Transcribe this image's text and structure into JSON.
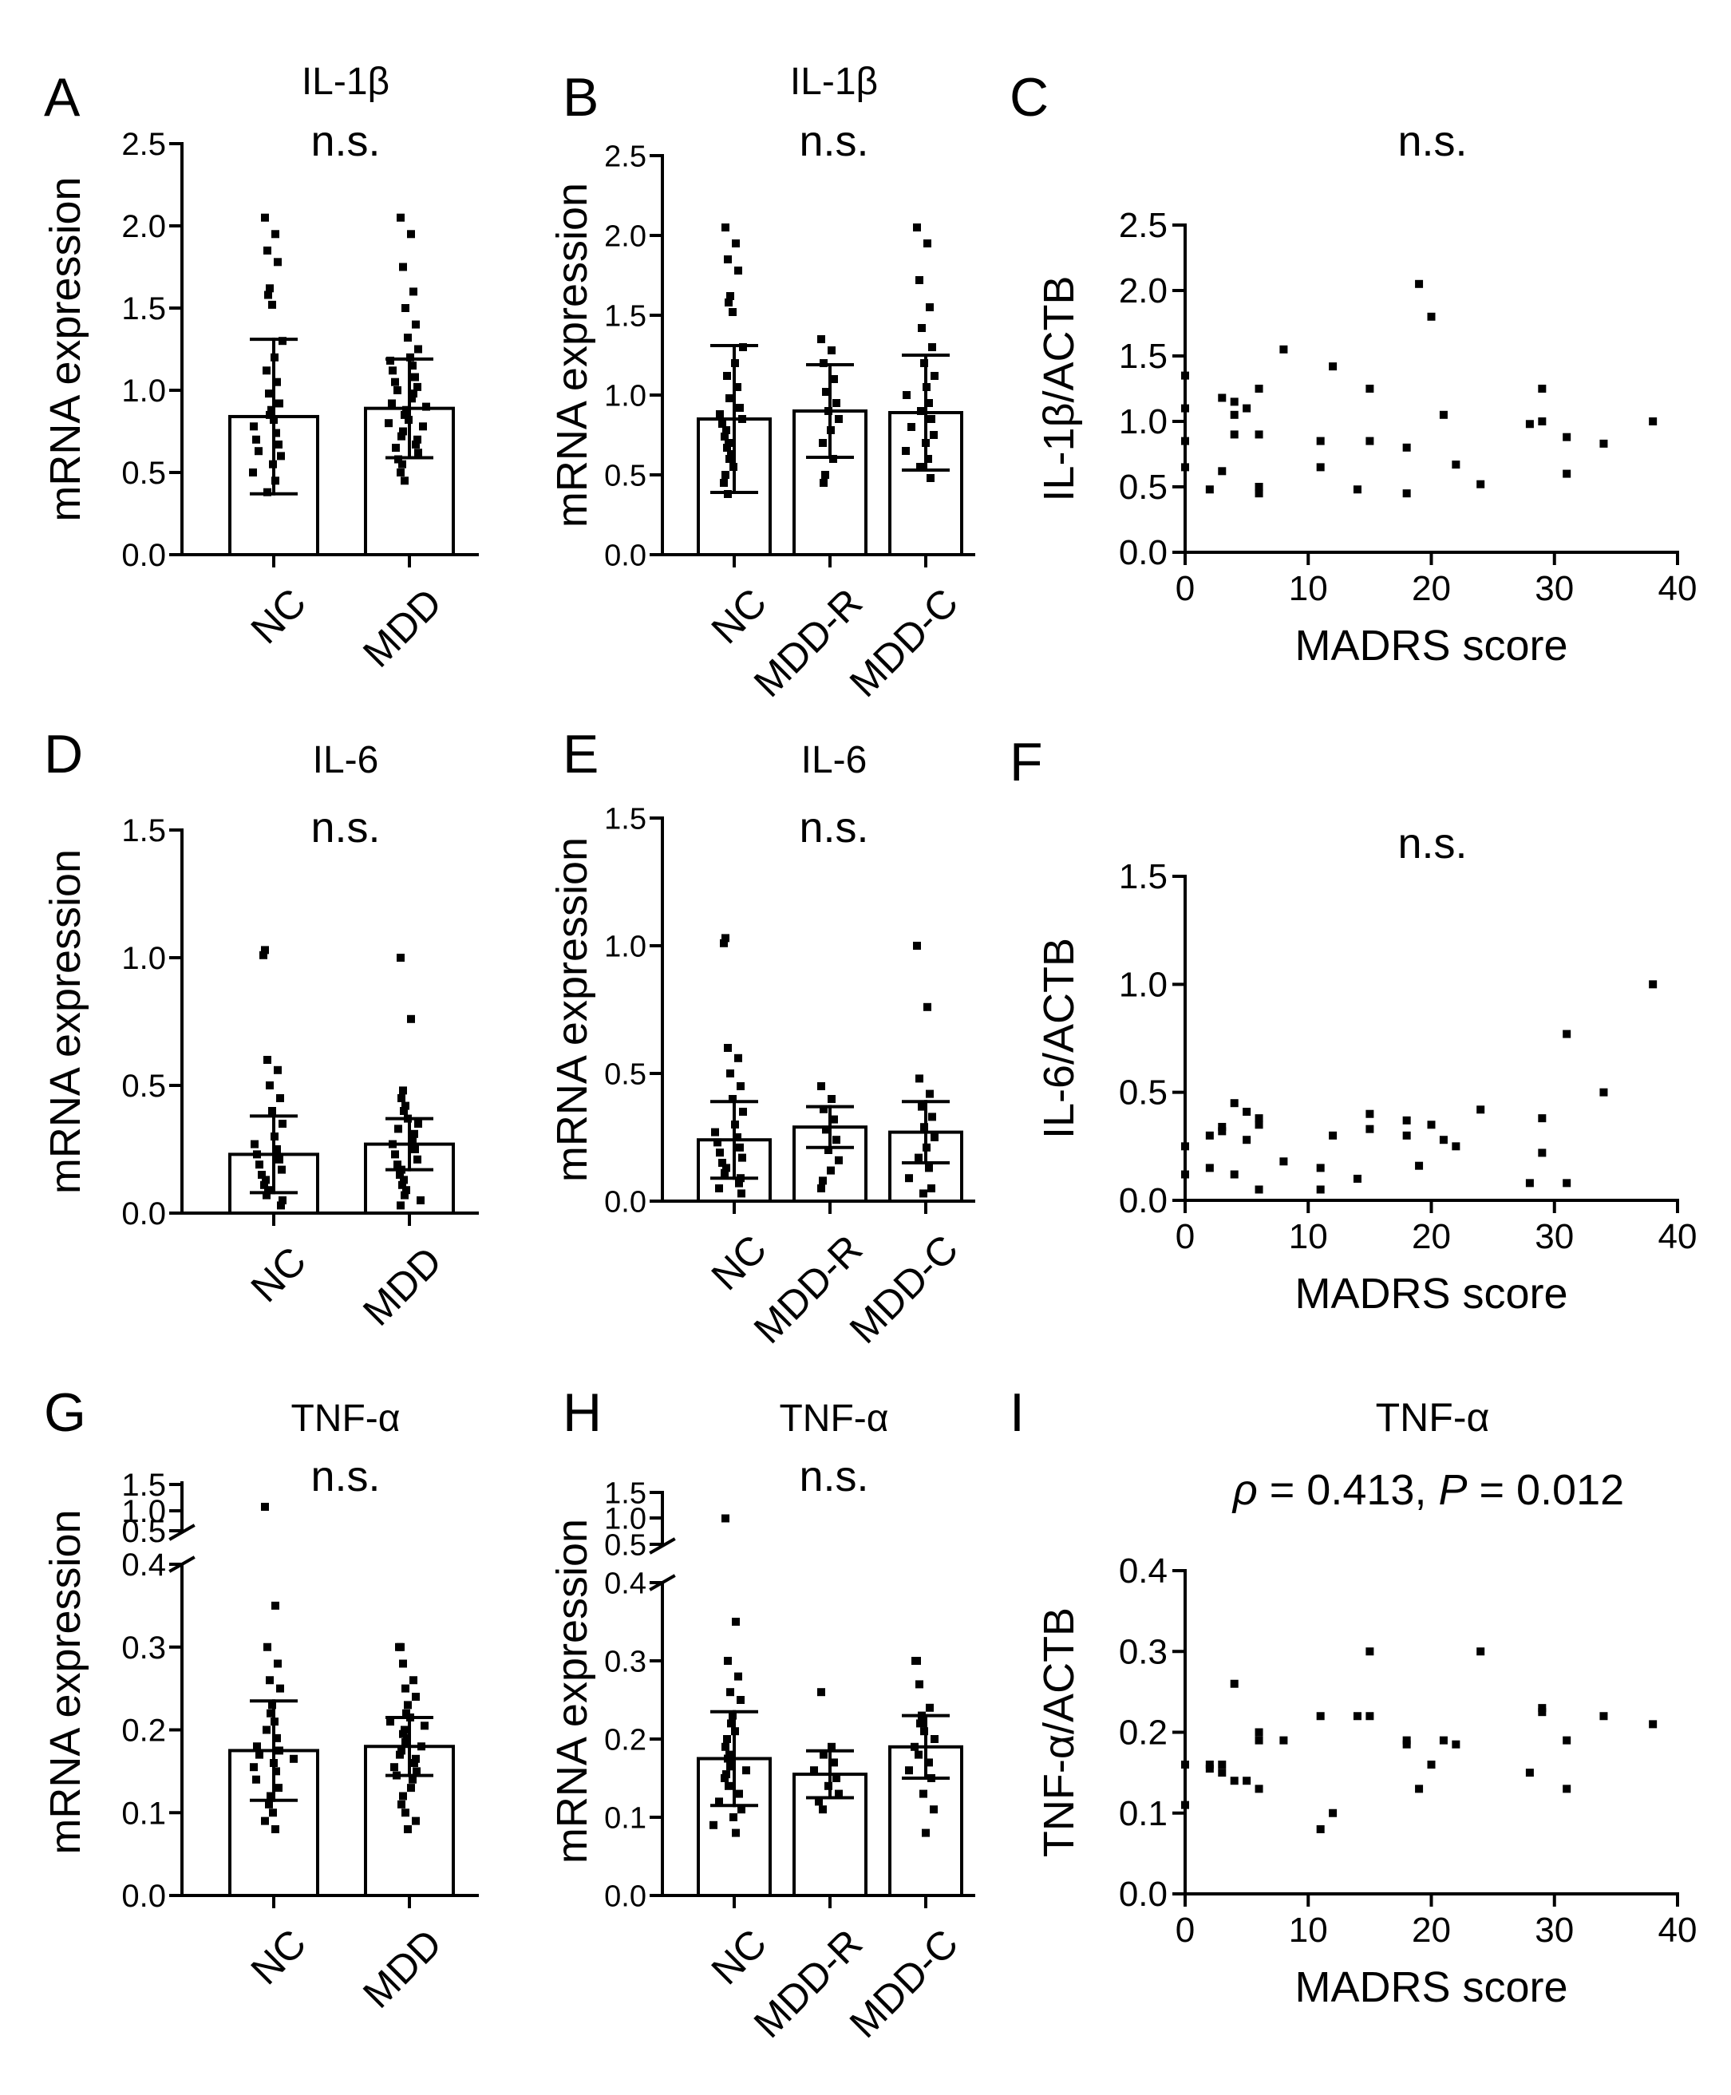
{
  "figure": {
    "axis_color": "#000000",
    "bar_fill": "#ffffff",
    "point_color": "#000000"
  },
  "chart_data": [
    {
      "panel": "A",
      "type": "bar",
      "title": "IL-1β",
      "annotation": "n.s.",
      "ylabel": "mRNA expression",
      "ylim": [
        0,
        2.5
      ],
      "yticks": [
        "0.0",
        "0.5",
        "1.0",
        "1.5",
        "2.0",
        "2.5"
      ],
      "categories": [
        "NC",
        "MDD"
      ],
      "values": [
        0.84,
        0.89
      ],
      "errors": [
        0.47,
        0.3
      ],
      "points": [
        [
          2.05,
          1.95,
          1.85,
          1.78,
          1.62,
          1.58,
          1.52,
          1.3,
          1.2,
          1.12,
          1.05,
          0.98,
          0.92,
          0.88,
          0.85,
          0.82,
          0.78,
          0.74,
          0.7,
          0.67,
          0.63,
          0.6,
          0.55,
          0.5,
          0.45,
          0.38
        ],
        [
          2.05,
          1.95,
          1.75,
          1.6,
          1.5,
          1.4,
          1.32,
          1.25,
          1.2,
          1.18,
          1.15,
          1.12,
          1.08,
          1.05,
          1.02,
          1.0,
          0.98,
          0.95,
          0.92,
          0.9,
          0.88,
          0.85,
          0.82,
          0.8,
          0.78,
          0.75,
          0.72,
          0.7,
          0.67,
          0.65,
          0.62,
          0.58,
          0.55,
          0.5,
          0.45
        ]
      ]
    },
    {
      "panel": "B",
      "type": "bar",
      "title": "IL-1β",
      "annotation": "n.s.",
      "ylabel": "mRNA expression",
      "ylim": [
        0,
        2.5
      ],
      "yticks": [
        "0.0",
        "0.5",
        "1.0",
        "1.5",
        "2.0",
        "2.5"
      ],
      "categories": [
        "NC",
        "MDD-R",
        "MDD-C"
      ],
      "values": [
        0.85,
        0.9,
        0.89
      ],
      "errors": [
        0.46,
        0.29,
        0.36
      ],
      "points": [
        [
          2.05,
          1.95,
          1.85,
          1.78,
          1.62,
          1.58,
          1.52,
          1.3,
          1.2,
          1.12,
          1.05,
          0.98,
          0.92,
          0.88,
          0.85,
          0.82,
          0.78,
          0.74,
          0.7,
          0.67,
          0.63,
          0.6,
          0.55,
          0.5,
          0.45,
          0.38
        ],
        [
          1.35,
          1.28,
          1.2,
          1.1,
          1.02,
          0.95,
          0.9,
          0.85,
          0.78,
          0.7,
          0.6,
          0.5,
          0.45
        ],
        [
          2.05,
          1.95,
          1.72,
          1.55,
          1.42,
          1.3,
          1.2,
          1.12,
          1.05,
          1.0,
          0.95,
          0.9,
          0.85,
          0.8,
          0.75,
          0.7,
          0.65,
          0.6,
          0.55,
          0.48
        ]
      ]
    },
    {
      "panel": "C",
      "type": "scatter",
      "title": "",
      "annotation": "n.s.",
      "xlabel": "MADRS score",
      "ylabel": "IL-1β/ACTB",
      "xlim": [
        0,
        40
      ],
      "ylim": [
        0,
        2.5
      ],
      "xticks": [
        "0",
        "10",
        "20",
        "30",
        "40"
      ],
      "yticks": [
        "0.0",
        "0.5",
        "1.0",
        "1.5",
        "2.0",
        "2.5"
      ],
      "points": [
        [
          0,
          1.35
        ],
        [
          0,
          1.1
        ],
        [
          0,
          0.85
        ],
        [
          0,
          0.65
        ],
        [
          2,
          0.48
        ],
        [
          3,
          0.62
        ],
        [
          3,
          1.18
        ],
        [
          4,
          1.05
        ],
        [
          4,
          1.15
        ],
        [
          4,
          0.9
        ],
        [
          5,
          1.1
        ],
        [
          6,
          1.25
        ],
        [
          6,
          0.9
        ],
        [
          6,
          0.5
        ],
        [
          6,
          0.45
        ],
        [
          8,
          1.55
        ],
        [
          11,
          0.85
        ],
        [
          11,
          0.65
        ],
        [
          12,
          1.42
        ],
        [
          14,
          0.48
        ],
        [
          15,
          1.25
        ],
        [
          15,
          0.85
        ],
        [
          18,
          0.8
        ],
        [
          18,
          0.45
        ],
        [
          19,
          2.05
        ],
        [
          20,
          1.8
        ],
        [
          21,
          1.05
        ],
        [
          22,
          0.67
        ],
        [
          24,
          0.52
        ],
        [
          28,
          0.98
        ],
        [
          29,
          1.25
        ],
        [
          29,
          1.0
        ],
        [
          31,
          0.88
        ],
        [
          31,
          0.6
        ],
        [
          34,
          0.83
        ],
        [
          38,
          1.0
        ]
      ]
    },
    {
      "panel": "D",
      "type": "bar",
      "title": "IL-6",
      "annotation": "n.s.",
      "ylabel": "mRNA expression",
      "ylim": [
        0,
        1.5
      ],
      "yticks": [
        "0.0",
        "0.5",
        "1.0",
        "1.5"
      ],
      "categories": [
        "NC",
        "MDD"
      ],
      "values": [
        0.23,
        0.27
      ],
      "errors": [
        0.15,
        0.1
      ],
      "points": [
        [
          1.03,
          1.01,
          0.6,
          0.56,
          0.5,
          0.45,
          0.4,
          0.35,
          0.3,
          0.27,
          0.25,
          0.23,
          0.21,
          0.19,
          0.17,
          0.15,
          0.13,
          0.11,
          0.09,
          0.07,
          0.05,
          0.03
        ],
        [
          1.0,
          0.76,
          0.48,
          0.45,
          0.42,
          0.4,
          0.37,
          0.35,
          0.33,
          0.31,
          0.29,
          0.27,
          0.25,
          0.23,
          0.21,
          0.19,
          0.17,
          0.15,
          0.13,
          0.11,
          0.09,
          0.07,
          0.05,
          0.03
        ]
      ]
    },
    {
      "panel": "E",
      "type": "bar",
      "title": "IL-6",
      "annotation": "n.s.",
      "ylabel": "mRNA expression",
      "ylim": [
        0,
        1.5
      ],
      "yticks": [
        "0.0",
        "0.5",
        "1.0",
        "1.5"
      ],
      "categories": [
        "NC",
        "MDD-R",
        "MDD-C"
      ],
      "values": [
        0.24,
        0.29,
        0.27
      ],
      "errors": [
        0.15,
        0.08,
        0.12
      ],
      "points": [
        [
          1.03,
          1.01,
          0.6,
          0.56,
          0.5,
          0.45,
          0.4,
          0.35,
          0.3,
          0.27,
          0.25,
          0.23,
          0.21,
          0.19,
          0.17,
          0.15,
          0.13,
          0.11,
          0.09,
          0.07,
          0.05,
          0.03
        ],
        [
          0.45,
          0.4,
          0.36,
          0.32,
          0.28,
          0.24,
          0.2,
          0.16,
          0.12,
          0.08,
          0.05
        ],
        [
          1.0,
          0.76,
          0.48,
          0.42,
          0.37,
          0.33,
          0.29,
          0.25,
          0.21,
          0.17,
          0.13,
          0.09,
          0.05,
          0.03
        ]
      ]
    },
    {
      "panel": "F",
      "type": "scatter",
      "title": "",
      "annotation": "n.s.",
      "xlabel": "MADRS score",
      "ylabel": "IL-6/ACTB",
      "xlim": [
        0,
        40
      ],
      "ylim": [
        0,
        1.5
      ],
      "xticks": [
        "0",
        "10",
        "20",
        "30",
        "40"
      ],
      "yticks": [
        "0.0",
        "0.5",
        "1.0",
        "1.5"
      ],
      "points": [
        [
          0,
          0.25
        ],
        [
          0,
          0.12
        ],
        [
          2,
          0.15
        ],
        [
          2,
          0.3
        ],
        [
          3,
          0.34
        ],
        [
          3,
          0.32
        ],
        [
          4,
          0.45
        ],
        [
          4,
          0.12
        ],
        [
          5,
          0.41
        ],
        [
          5,
          0.28
        ],
        [
          6,
          0.38
        ],
        [
          6,
          0.35
        ],
        [
          6,
          0.05
        ],
        [
          8,
          0.18
        ],
        [
          11,
          0.15
        ],
        [
          11,
          0.05
        ],
        [
          12,
          0.3
        ],
        [
          14,
          0.1
        ],
        [
          15,
          0.4
        ],
        [
          15,
          0.33
        ],
        [
          18,
          0.37
        ],
        [
          18,
          0.3
        ],
        [
          19,
          0.16
        ],
        [
          20,
          0.35
        ],
        [
          21,
          0.28
        ],
        [
          22,
          0.25
        ],
        [
          24,
          0.42
        ],
        [
          28,
          0.08
        ],
        [
          29,
          0.38
        ],
        [
          29,
          0.22
        ],
        [
          31,
          0.77
        ],
        [
          31,
          0.08
        ],
        [
          34,
          0.5
        ],
        [
          38,
          1.0
        ]
      ]
    },
    {
      "panel": "G",
      "type": "bar",
      "title": "TNF-α",
      "annotation": "n.s.",
      "ylabel": "mRNA expression",
      "ylim": [
        0,
        0.4
      ],
      "yticks": [
        "0.0",
        "0.1",
        "0.2",
        "0.3",
        "0.4"
      ],
      "yticks_upper": [
        "0.5",
        "1.0",
        "1.5"
      ],
      "categories": [
        "NC",
        "MDD"
      ],
      "values": [
        0.175,
        0.18
      ],
      "errors": [
        0.06,
        0.035
      ],
      "points": [
        [
          1.0,
          0.35,
          0.3,
          0.28,
          0.26,
          0.25,
          0.23,
          0.22,
          0.21,
          0.2,
          0.19,
          0.18,
          0.175,
          0.17,
          0.165,
          0.16,
          0.155,
          0.15,
          0.14,
          0.13,
          0.12,
          0.11,
          0.1,
          0.09,
          0.08
        ],
        [
          0.3,
          0.3,
          0.28,
          0.26,
          0.25,
          0.24,
          0.23,
          0.22,
          0.215,
          0.21,
          0.205,
          0.2,
          0.195,
          0.19,
          0.185,
          0.18,
          0.175,
          0.17,
          0.165,
          0.16,
          0.155,
          0.15,
          0.145,
          0.14,
          0.13,
          0.12,
          0.11,
          0.1,
          0.09,
          0.08
        ]
      ]
    },
    {
      "panel": "H",
      "type": "bar",
      "title": "TNF-α",
      "annotation": "n.s.",
      "ylabel": "mRNA expression",
      "ylim": [
        0,
        0.4
      ],
      "yticks": [
        "0.0",
        "0.1",
        "0.2",
        "0.3",
        "0.4"
      ],
      "yticks_upper": [
        "0.5",
        "1.0",
        "1.5"
      ],
      "categories": [
        "NC",
        "MDD-R",
        "MDD-C"
      ],
      "values": [
        0.175,
        0.155,
        0.19
      ],
      "errors": [
        0.06,
        0.03,
        0.04
      ],
      "points": [
        [
          1.0,
          0.35,
          0.3,
          0.28,
          0.26,
          0.25,
          0.23,
          0.22,
          0.21,
          0.2,
          0.19,
          0.18,
          0.175,
          0.17,
          0.165,
          0.16,
          0.155,
          0.15,
          0.14,
          0.13,
          0.12,
          0.11,
          0.1,
          0.09,
          0.08
        ],
        [
          0.26,
          0.19,
          0.18,
          0.17,
          0.16,
          0.15,
          0.14,
          0.13,
          0.12,
          0.11
        ],
        [
          0.3,
          0.3,
          0.27,
          0.24,
          0.23,
          0.22,
          0.21,
          0.2,
          0.19,
          0.18,
          0.17,
          0.16,
          0.15,
          0.13,
          0.11,
          0.08
        ]
      ]
    },
    {
      "panel": "I",
      "type": "scatter",
      "title": "TNF-α",
      "annotation": "ρ = 0.413, P = 0.012",
      "annotation_parts": [
        "ρ",
        " = 0.413, ",
        "P",
        " = 0.012"
      ],
      "xlabel": "MADRS score",
      "ylabel": "TNF-α/ACTB",
      "xlim": [
        0,
        40
      ],
      "ylim": [
        0,
        0.4
      ],
      "xticks": [
        "0",
        "10",
        "20",
        "30",
        "40"
      ],
      "yticks": [
        "0.0",
        "0.1",
        "0.2",
        "0.3",
        "0.4"
      ],
      "points": [
        [
          0,
          0.16
        ],
        [
          0,
          0.11
        ],
        [
          2,
          0.16
        ],
        [
          2,
          0.155
        ],
        [
          3,
          0.16
        ],
        [
          3,
          0.15
        ],
        [
          4,
          0.26
        ],
        [
          4,
          0.14
        ],
        [
          5,
          0.14
        ],
        [
          6,
          0.2
        ],
        [
          6,
          0.19
        ],
        [
          6,
          0.13
        ],
        [
          8,
          0.19
        ],
        [
          11,
          0.22
        ],
        [
          11,
          0.08
        ],
        [
          12,
          0.1
        ],
        [
          14,
          0.22
        ],
        [
          15,
          0.3
        ],
        [
          15,
          0.22
        ],
        [
          18,
          0.19
        ],
        [
          18,
          0.185
        ],
        [
          19,
          0.13
        ],
        [
          20,
          0.16
        ],
        [
          21,
          0.19
        ],
        [
          22,
          0.185
        ],
        [
          24,
          0.3
        ],
        [
          28,
          0.15
        ],
        [
          29,
          0.23
        ],
        [
          29,
          0.225
        ],
        [
          31,
          0.19
        ],
        [
          31,
          0.13
        ],
        [
          34,
          0.22
        ],
        [
          38,
          0.21
        ]
      ]
    }
  ]
}
